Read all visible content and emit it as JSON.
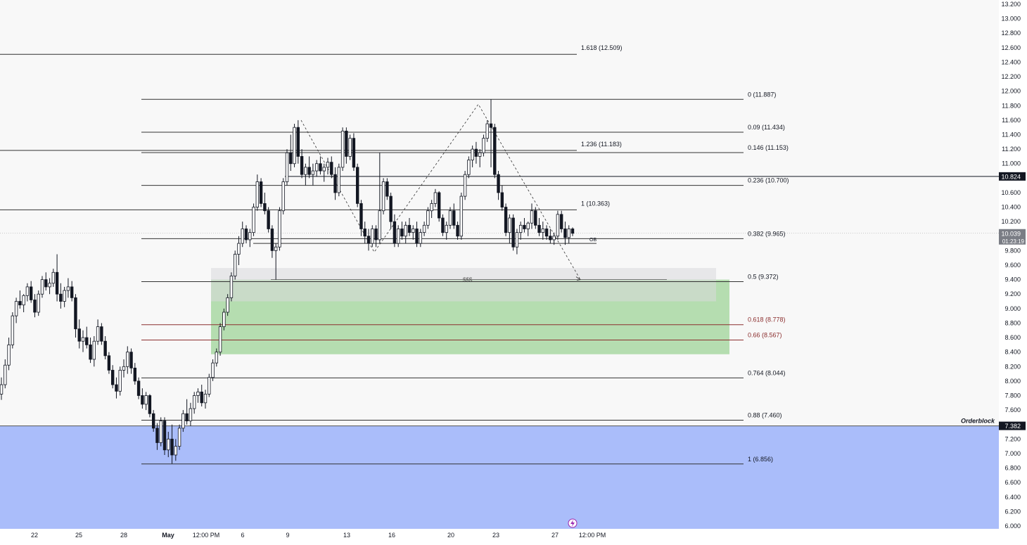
{
  "chart_data": {
    "type": "candlestick",
    "title": "",
    "y_axis": {
      "ticks": [
        "13.200",
        "13.000",
        "12.800",
        "12.600",
        "12.400",
        "12.200",
        "12.000",
        "11.800",
        "11.600",
        "11.400",
        "11.200",
        "11.000",
        "10.800",
        "10.600",
        "10.400",
        "10.200",
        "10.000",
        "9.800",
        "9.600",
        "9.400",
        "9.200",
        "9.000",
        "8.800",
        "8.600",
        "8.400",
        "8.200",
        "8.000",
        "7.800",
        "7.600",
        "7.400",
        "7.200",
        "7.000",
        "6.800",
        "6.600",
        "6.400",
        "6.200",
        "6.000"
      ],
      "ylim": [
        6.0,
        13.2
      ]
    },
    "x_axis": {
      "ticks": [
        "22",
        "25",
        "28",
        "May",
        "12:00 PM",
        "6",
        "9",
        "13",
        "16",
        "20",
        "23",
        "27",
        "12:00 PM"
      ]
    },
    "current_price": {
      "value": 10.039,
      "label": "10.039",
      "countdown": "01:23:19"
    },
    "price_tags": [
      {
        "value": 10.824,
        "label": "10.824"
      },
      {
        "value": 7.382,
        "label": "7.382"
      }
    ],
    "fib_levels_primary": [
      {
        "label": "0 (11.887)",
        "value": 11.887,
        "color": "#131722"
      },
      {
        "label": "0.09 (11.434)",
        "value": 11.434,
        "color": "#131722"
      },
      {
        "label": "0.146 (11.153)",
        "value": 11.153,
        "color": "#131722"
      },
      {
        "label": "0.236 (10.700)",
        "value": 10.7,
        "color": "#131722"
      },
      {
        "label": "0.382 (9.965)",
        "value": 9.965,
        "color": "#131722"
      },
      {
        "label": "0.5 (9.372)",
        "value": 9.372,
        "color": "#131722"
      },
      {
        "label": "0.618 (8.778)",
        "value": 8.778,
        "color": "#8b2e2e"
      },
      {
        "label": "0.66 (8.567)",
        "value": 8.567,
        "color": "#8b2e2e"
      },
      {
        "label": "0.764 (8.044)",
        "value": 8.044,
        "color": "#131722"
      },
      {
        "label": "0.88 (7.460)",
        "value": 7.46,
        "color": "#131722"
      },
      {
        "label": "1 (6.856)",
        "value": 6.856,
        "color": "#131722"
      }
    ],
    "fib_levels_extension": [
      {
        "label": "1.618 (12.509)",
        "value": 12.509
      },
      {
        "label": "1.236 (11.183)",
        "value": 11.183
      },
      {
        "label": "1 (10.363)",
        "value": 10.363
      }
    ],
    "annotations": {
      "ob_label": "OB",
      "liquidity_label": "$$$",
      "orderblock_label": "Orderblock"
    },
    "zones": [
      {
        "name": "orderblock",
        "from": 6.0,
        "to": 7.382,
        "color": "#aabdfa"
      },
      {
        "name": "demand",
        "from": 8.37,
        "to": 9.4,
        "color": "#b5ddb0"
      },
      {
        "name": "grey",
        "from": 9.1,
        "to": 9.56,
        "color": "#d8d8dc"
      }
    ],
    "candles": [
      [
        7.82,
        8.05,
        7.74,
        7.95
      ],
      [
        7.95,
        8.3,
        7.9,
        8.22
      ],
      [
        8.22,
        8.6,
        8.15,
        8.5
      ],
      [
        8.5,
        8.95,
        8.45,
        8.9
      ],
      [
        8.9,
        9.15,
        8.8,
        9.1
      ],
      [
        9.1,
        9.25,
        9.0,
        9.05
      ],
      [
        9.05,
        9.2,
        8.95,
        9.18
      ],
      [
        9.18,
        9.35,
        9.1,
        9.3
      ],
      [
        9.3,
        9.38,
        9.08,
        9.12
      ],
      [
        9.12,
        9.2,
        8.88,
        8.95
      ],
      [
        8.95,
        9.25,
        8.9,
        9.2
      ],
      [
        9.2,
        9.45,
        9.15,
        9.4
      ],
      [
        9.4,
        9.5,
        9.25,
        9.3
      ],
      [
        9.3,
        9.42,
        9.2,
        9.35
      ],
      [
        9.35,
        9.55,
        9.3,
        9.5
      ],
      [
        9.5,
        9.75,
        9.1,
        9.2
      ],
      [
        9.2,
        9.35,
        9.0,
        9.1
      ],
      [
        9.1,
        9.3,
        9.02,
        9.25
      ],
      [
        9.25,
        9.42,
        9.15,
        9.3
      ],
      [
        9.3,
        9.38,
        9.1,
        9.15
      ],
      [
        9.15,
        9.2,
        8.6,
        8.72
      ],
      [
        8.72,
        8.85,
        8.45,
        8.55
      ],
      [
        8.55,
        8.7,
        8.4,
        8.6
      ],
      [
        8.6,
        8.75,
        8.45,
        8.5
      ],
      [
        8.5,
        8.6,
        8.25,
        8.3
      ],
      [
        8.3,
        8.62,
        8.2,
        8.55
      ],
      [
        8.55,
        8.85,
        8.5,
        8.75
      ],
      [
        8.75,
        8.8,
        8.5,
        8.55
      ],
      [
        8.55,
        8.62,
        8.3,
        8.35
      ],
      [
        8.35,
        8.4,
        8.1,
        8.15
      ],
      [
        8.15,
        8.22,
        7.9,
        7.95
      ],
      [
        7.95,
        8.05,
        7.76,
        7.86
      ],
      [
        7.86,
        8.2,
        7.8,
        8.15
      ],
      [
        8.15,
        8.3,
        8.05,
        8.2
      ],
      [
        8.2,
        8.48,
        8.1,
        8.4
      ],
      [
        8.4,
        8.45,
        8.1,
        8.18
      ],
      [
        8.18,
        8.25,
        7.95,
        8.0
      ],
      [
        8.0,
        8.05,
        7.75,
        7.8
      ],
      [
        7.8,
        7.9,
        7.62,
        7.68
      ],
      [
        7.68,
        7.85,
        7.6,
        7.8
      ],
      [
        7.8,
        7.82,
        7.5,
        7.55
      ],
      [
        7.55,
        7.6,
        7.3,
        7.35
      ],
      [
        7.35,
        7.42,
        7.05,
        7.15
      ],
      [
        7.15,
        7.5,
        7.1,
        7.45
      ],
      [
        7.45,
        7.5,
        6.98,
        7.05
      ],
      [
        7.05,
        7.3,
        6.95,
        7.2
      ],
      [
        7.2,
        7.4,
        6.86,
        6.98
      ],
      [
        6.98,
        7.2,
        6.9,
        7.1
      ],
      [
        7.1,
        7.4,
        7.05,
        7.35
      ],
      [
        7.35,
        7.6,
        7.3,
        7.55
      ],
      [
        7.55,
        7.75,
        7.4,
        7.45
      ],
      [
        7.45,
        7.7,
        7.38,
        7.62
      ],
      [
        7.62,
        7.85,
        7.55,
        7.8
      ],
      [
        7.8,
        7.9,
        7.7,
        7.85
      ],
      [
        7.85,
        7.95,
        7.65,
        7.7
      ],
      [
        7.7,
        7.88,
        7.62,
        7.82
      ],
      [
        7.82,
        8.1,
        7.78,
        8.05
      ],
      [
        8.05,
        8.3,
        8.0,
        8.25
      ],
      [
        8.25,
        8.45,
        8.2,
        8.4
      ],
      [
        8.4,
        8.8,
        8.35,
        8.75
      ],
      [
        8.75,
        9.0,
        8.7,
        8.95
      ],
      [
        8.95,
        9.2,
        8.9,
        9.15
      ],
      [
        9.15,
        9.5,
        9.1,
        9.45
      ],
      [
        9.45,
        9.8,
        9.4,
        9.75
      ],
      [
        9.75,
        10.0,
        9.6,
        9.9
      ],
      [
        9.9,
        10.2,
        9.85,
        10.1
      ],
      [
        10.1,
        10.15,
        9.9,
        9.95
      ],
      [
        9.95,
        10.1,
        9.85,
        10.05
      ],
      [
        10.05,
        10.45,
        10.0,
        10.4
      ],
      [
        10.4,
        10.85,
        10.35,
        10.75
      ],
      [
        10.75,
        10.8,
        10.4,
        10.45
      ],
      [
        10.45,
        10.6,
        10.3,
        10.35
      ],
      [
        10.35,
        10.4,
        10.05,
        10.1
      ],
      [
        10.1,
        10.15,
        9.7,
        9.8
      ],
      [
        9.8,
        9.9,
        9.4,
        9.85
      ],
      [
        9.85,
        10.4,
        9.8,
        10.35
      ],
      [
        10.35,
        10.8,
        10.3,
        10.75
      ],
      [
        10.75,
        11.2,
        10.7,
        11.15
      ],
      [
        11.15,
        11.4,
        10.9,
        11.0
      ],
      [
        11.0,
        11.55,
        10.95,
        11.5
      ],
      [
        11.5,
        11.6,
        11.0,
        11.1
      ],
      [
        11.1,
        11.2,
        10.8,
        10.85
      ],
      [
        10.85,
        11.0,
        10.7,
        10.95
      ],
      [
        10.95,
        11.1,
        10.8,
        10.85
      ],
      [
        10.85,
        11.0,
        10.7,
        10.9
      ],
      [
        10.9,
        11.05,
        10.82,
        11.0
      ],
      [
        11.0,
        11.1,
        10.85,
        10.9
      ],
      [
        10.9,
        11.0,
        10.75,
        10.95
      ],
      [
        10.95,
        11.08,
        10.85,
        11.02
      ],
      [
        11.02,
        11.1,
        10.8,
        10.85
      ],
      [
        10.85,
        10.95,
        10.5,
        10.6
      ],
      [
        10.6,
        11.0,
        10.55,
        10.95
      ],
      [
        10.95,
        11.5,
        10.9,
        11.45
      ],
      [
        11.45,
        11.5,
        11.0,
        11.1
      ],
      [
        11.1,
        11.4,
        11.05,
        11.35
      ],
      [
        11.35,
        11.42,
        10.9,
        10.95
      ],
      [
        10.95,
        11.0,
        10.4,
        10.45
      ],
      [
        10.45,
        10.5,
        10.0,
        10.1
      ],
      [
        10.1,
        10.2,
        9.9,
        10.0
      ],
      [
        10.0,
        10.1,
        9.8,
        9.9
      ],
      [
        9.9,
        10.15,
        9.85,
        10.1
      ],
      [
        10.1,
        10.15,
        9.85,
        9.95
      ],
      [
        9.95,
        11.15,
        9.9,
        10.35
      ],
      [
        10.35,
        10.8,
        10.3,
        10.75
      ],
      [
        10.75,
        10.8,
        10.5,
        10.55
      ],
      [
        10.55,
        10.6,
        10.1,
        10.2
      ],
      [
        10.2,
        10.3,
        9.85,
        9.9
      ],
      [
        9.9,
        10.15,
        9.85,
        10.1
      ],
      [
        10.1,
        10.2,
        9.95,
        10.0
      ],
      [
        10.0,
        10.2,
        9.9,
        10.15
      ],
      [
        10.15,
        10.25,
        10.0,
        10.05
      ],
      [
        10.05,
        10.15,
        9.95,
        10.1
      ],
      [
        10.1,
        10.2,
        9.85,
        9.9
      ],
      [
        9.9,
        10.1,
        9.85,
        10.05
      ],
      [
        10.05,
        10.2,
        10.0,
        10.15
      ],
      [
        10.15,
        10.4,
        10.1,
        10.35
      ],
      [
        10.35,
        10.5,
        10.25,
        10.45
      ],
      [
        10.45,
        10.65,
        10.4,
        10.6
      ],
      [
        10.6,
        10.62,
        10.2,
        10.25
      ],
      [
        10.25,
        10.3,
        10.0,
        10.05
      ],
      [
        10.05,
        10.2,
        9.95,
        10.15
      ],
      [
        10.15,
        10.4,
        10.1,
        10.35
      ],
      [
        10.35,
        10.45,
        10.1,
        10.15
      ],
      [
        10.15,
        10.2,
        9.95,
        10.0
      ],
      [
        10.0,
        10.6,
        9.95,
        10.55
      ],
      [
        10.55,
        10.9,
        10.5,
        10.85
      ],
      [
        10.85,
        11.1,
        10.8,
        11.05
      ],
      [
        11.05,
        11.25,
        10.95,
        11.2
      ],
      [
        11.2,
        11.3,
        11.0,
        11.1
      ],
      [
        11.1,
        11.2,
        10.95,
        11.15
      ],
      [
        11.15,
        11.4,
        11.1,
        11.35
      ],
      [
        11.35,
        11.6,
        11.3,
        11.55
      ],
      [
        11.55,
        11.887,
        10.95,
        11.5
      ],
      [
        11.5,
        11.55,
        10.8,
        10.85
      ],
      [
        10.85,
        10.9,
        10.5,
        10.6
      ],
      [
        10.6,
        10.7,
        10.35,
        10.4
      ],
      [
        10.4,
        10.45,
        10.0,
        10.05
      ],
      [
        10.05,
        10.3,
        9.9,
        10.25
      ],
      [
        10.25,
        10.3,
        9.8,
        9.85
      ],
      [
        9.85,
        10.1,
        9.75,
        10.05
      ],
      [
        10.05,
        10.2,
        9.95,
        10.15
      ],
      [
        10.15,
        10.25,
        10.05,
        10.1
      ],
      [
        10.1,
        10.2,
        10.0,
        10.18
      ],
      [
        10.18,
        10.45,
        10.1,
        10.35
      ],
      [
        10.35,
        10.4,
        10.1,
        10.15
      ],
      [
        10.15,
        10.25,
        10.0,
        10.05
      ],
      [
        10.05,
        10.2,
        9.95,
        10.1
      ],
      [
        10.1,
        10.15,
        9.95,
        10.0
      ],
      [
        10.0,
        10.1,
        9.9,
        9.95
      ],
      [
        9.95,
        10.05,
        9.88,
        10.0
      ],
      [
        10.0,
        10.35,
        9.95,
        10.3
      ],
      [
        10.3,
        10.35,
        10.05,
        10.1
      ],
      [
        10.1,
        10.2,
        9.88,
        9.98
      ],
      [
        9.98,
        10.15,
        9.9,
        10.1
      ],
      [
        10.1,
        10.12,
        10.0,
        10.039
      ]
    ]
  }
}
